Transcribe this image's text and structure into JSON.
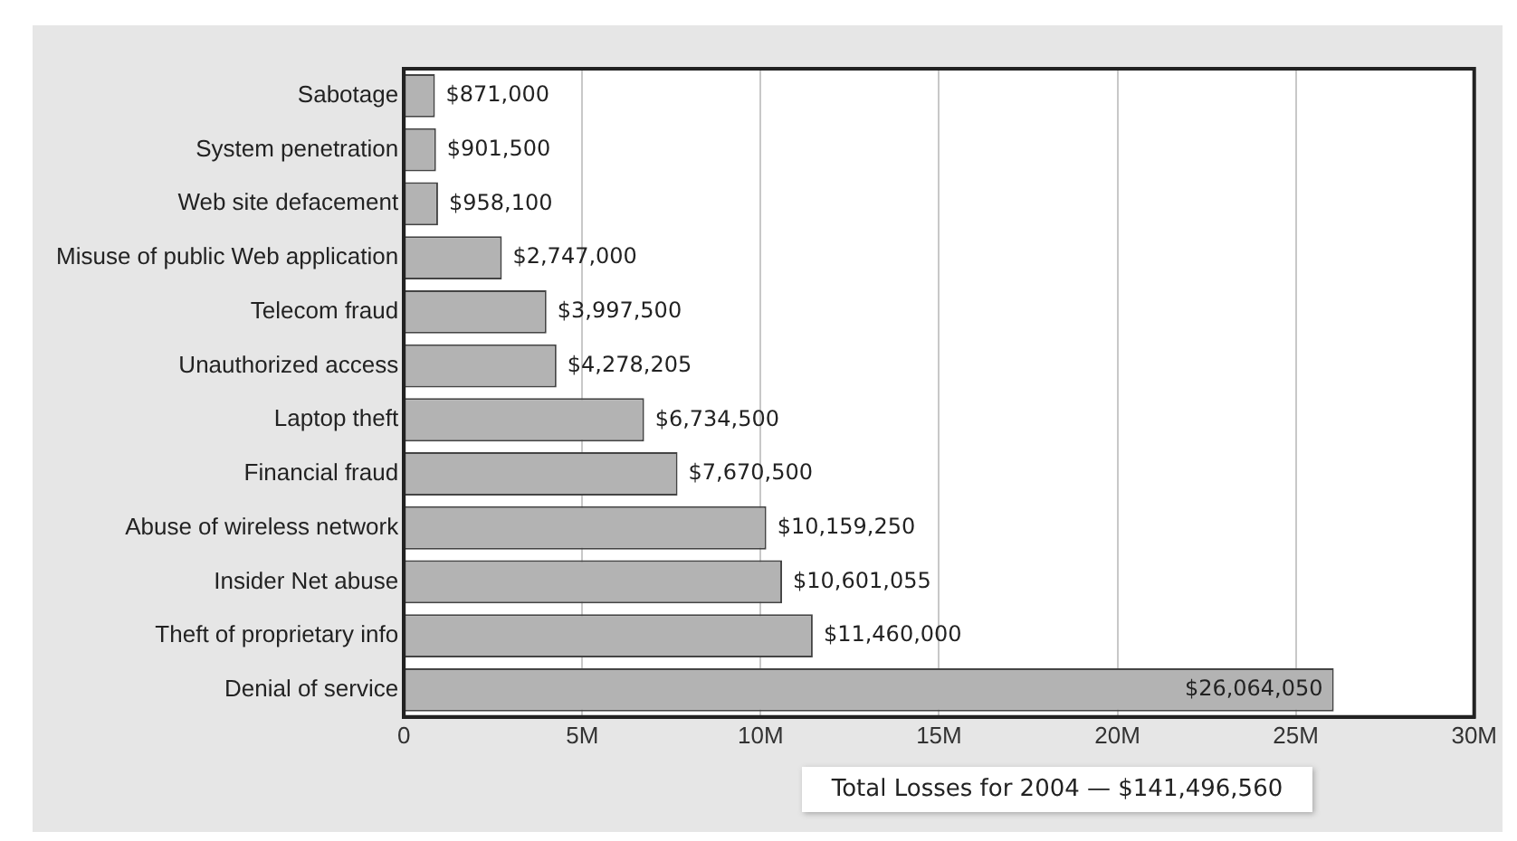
{
  "chart_data": {
    "type": "bar",
    "orientation": "horizontal",
    "categories": [
      "Sabotage",
      "System penetration",
      "Web site defacement",
      "Misuse of public Web application",
      "Telecom fraud",
      "Unauthorized access",
      "Laptop theft",
      "Financial fraud",
      "Abuse of wireless network",
      "Insider Net abuse",
      "Theft of proprietary info",
      "Denial of service"
    ],
    "values": [
      871000,
      901500,
      958100,
      2747000,
      3997500,
      4278205,
      6734500,
      7670500,
      10159250,
      10601055,
      11460000,
      26064050
    ],
    "value_labels": [
      "$871,000",
      "$901,500",
      "$958,100",
      "$2,747,000",
      "$3,997,500",
      "$4,278,205",
      "$6,734,500",
      "$7,670,500",
      "$10,159,250",
      "$10,601,055",
      "$11,460,000",
      "$26,064,050"
    ],
    "color": "#b3b3b3",
    "xlim": [
      0,
      30000000
    ],
    "xticks": [
      0,
      {
        "value": 5000000,
        "label": "5M"
      },
      {
        "value": 10000000,
        "label": "10M"
      },
      {
        "value": 15000000,
        "label": "15M"
      },
      {
        "value": 20000000,
        "label": "20M"
      },
      {
        "value": 25000000,
        "label": "25M"
      },
      {
        "value": 30000000,
        "label": "30M"
      }
    ],
    "grid": "x",
    "legend": false,
    "annotations": [
      "Total Losses for 2004 — $141,496,560"
    ]
  }
}
